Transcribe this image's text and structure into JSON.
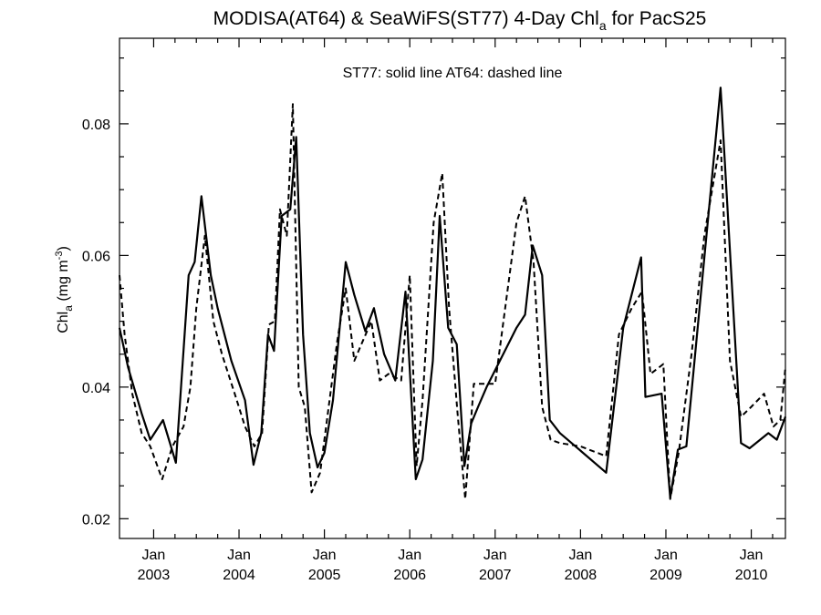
{
  "chart_data": {
    "type": "line",
    "title": {
      "main": "MODISA(AT64) & SeaWiFS(ST77) 4-Day Chl",
      "sub": "a",
      "tail": " for PacS25"
    },
    "annotation": "ST77: solid line   AT64: dashed line",
    "ylabel": {
      "main": "Chl",
      "sub": "a",
      "units_prefix": " (mg m",
      "units_sup": "-3",
      "units_suffix": ")"
    },
    "xlim": [
      2002.6,
      2010.4
    ],
    "ylim": [
      0.017,
      0.093
    ],
    "y_ticks": [
      0.02,
      0.04,
      0.06,
      0.08
    ],
    "y_tick_labels": [
      "0.02",
      "0.04",
      "0.06",
      "0.08"
    ],
    "y_minor_ticks": [
      0.025,
      0.03,
      0.035,
      0.045,
      0.05,
      0.055,
      0.065,
      0.07,
      0.075,
      0.085,
      0.09
    ],
    "x_ticks": [
      2003.0,
      2004.0,
      2005.0,
      2006.0,
      2007.0,
      2008.0,
      2009.0,
      2010.0
    ],
    "x_tick_labels": [
      {
        "month": "Jan",
        "year": "2003"
      },
      {
        "month": "Jan",
        "year": "2004"
      },
      {
        "month": "Jan",
        "year": "2005"
      },
      {
        "month": "Jan",
        "year": "2006"
      },
      {
        "month": "Jan",
        "year": "2007"
      },
      {
        "month": "Jan",
        "year": "2008"
      },
      {
        "month": "Jan",
        "year": "2009"
      },
      {
        "month": "Jan",
        "year": "2010"
      }
    ],
    "x_minor_ticks": [
      2003.25,
      2003.5,
      2003.75,
      2004.25,
      2004.5,
      2004.75,
      2005.25,
      2005.5,
      2005.75,
      2006.25,
      2006.5,
      2006.75,
      2007.25,
      2007.5,
      2007.75,
      2008.25,
      2008.5,
      2008.75,
      2009.25,
      2009.5,
      2009.75,
      2010.25
    ],
    "grid": false,
    "series": [
      {
        "name": "ST77",
        "style": "solid",
        "color": "#000000",
        "x": [
          2002.6,
          2002.7,
          2002.86,
          2002.96,
          2003.11,
          2003.26,
          2003.41,
          2003.48,
          2003.56,
          2003.67,
          2003.75,
          2003.91,
          2004.07,
          2004.17,
          2004.26,
          2004.34,
          2004.41,
          2004.5,
          2004.6,
          2004.67,
          2004.75,
          2004.83,
          2004.92,
          2005.0,
          2005.1,
          2005.25,
          2005.35,
          2005.48,
          2005.58,
          2005.7,
          2005.83,
          2005.95,
          2006.07,
          2006.15,
          2006.27,
          2006.35,
          2006.45,
          2006.55,
          2006.64,
          2006.72,
          2006.8,
          2006.9,
          2007.25,
          2007.35,
          2007.44,
          2007.55,
          2007.64,
          2007.76,
          2008.3,
          2008.5,
          2008.71,
          2008.76,
          2008.95,
          2009.05,
          2009.14,
          2009.24,
          2009.64,
          2009.88,
          2009.98,
          2010.2,
          2010.3,
          2010.4
        ],
        "y": [
          0.049,
          0.043,
          0.036,
          0.032,
          0.035,
          0.0285,
          0.057,
          0.059,
          0.069,
          0.057,
          0.052,
          0.044,
          0.038,
          0.0282,
          0.033,
          0.048,
          0.0455,
          0.066,
          0.067,
          0.078,
          0.048,
          0.033,
          0.0278,
          0.03,
          0.038,
          0.059,
          0.054,
          0.0485,
          0.052,
          0.045,
          0.041,
          0.0545,
          0.026,
          0.029,
          0.044,
          0.066,
          0.049,
          0.0465,
          0.028,
          0.0345,
          0.037,
          0.04,
          0.049,
          0.051,
          0.0615,
          0.057,
          0.035,
          0.033,
          0.027,
          0.049,
          0.0597,
          0.0385,
          0.039,
          0.0232,
          0.0305,
          0.031,
          0.0855,
          0.0315,
          0.0307,
          0.033,
          0.032,
          0.0355
        ]
      },
      {
        "name": "AT64",
        "style": "dashed",
        "color": "#000000",
        "x": [
          2002.6,
          2002.66,
          2002.75,
          2002.86,
          2002.96,
          2003.1,
          2003.22,
          2003.35,
          2003.43,
          2003.5,
          2003.6,
          2003.7,
          2003.8,
          2003.95,
          2004.07,
          2004.18,
          2004.27,
          2004.35,
          2004.42,
          2004.48,
          2004.56,
          2004.63,
          2004.7,
          2004.77,
          2004.85,
          2004.95,
          2005.05,
          2005.15,
          2005.25,
          2005.35,
          2005.45,
          2005.55,
          2005.65,
          2005.75,
          2005.9,
          2006.0,
          2006.08,
          2006.15,
          2006.28,
          2006.38,
          2006.46,
          2006.56,
          2006.65,
          2006.75,
          2006.82,
          2006.9,
          2007.0,
          2007.25,
          2007.35,
          2007.45,
          2007.55,
          2007.65,
          2007.76,
          2008.0,
          2008.3,
          2008.45,
          2008.6,
          2008.72,
          2008.82,
          2008.97,
          2009.05,
          2009.15,
          2009.3,
          2009.45,
          2009.64,
          2009.75,
          2009.88,
          2010.0,
          2010.15,
          2010.26,
          2010.34,
          2010.4
        ],
        "y": [
          0.057,
          0.048,
          0.039,
          0.033,
          0.031,
          0.026,
          0.031,
          0.034,
          0.04,
          0.052,
          0.063,
          0.05,
          0.045,
          0.039,
          0.034,
          0.031,
          0.033,
          0.0495,
          0.05,
          0.067,
          0.063,
          0.083,
          0.04,
          0.037,
          0.024,
          0.027,
          0.037,
          0.047,
          0.055,
          0.044,
          0.047,
          0.05,
          0.041,
          0.042,
          0.041,
          0.057,
          0.028,
          0.038,
          0.065,
          0.0725,
          0.052,
          0.036,
          0.023,
          0.0405,
          0.0405,
          0.0405,
          0.0405,
          0.065,
          0.069,
          0.059,
          0.037,
          0.032,
          0.0315,
          0.031,
          0.0295,
          0.048,
          0.052,
          0.0545,
          0.042,
          0.0435,
          0.023,
          0.03,
          0.045,
          0.063,
          0.0775,
          0.044,
          0.0355,
          0.037,
          0.039,
          0.034,
          0.035,
          0.043
        ]
      }
    ]
  }
}
